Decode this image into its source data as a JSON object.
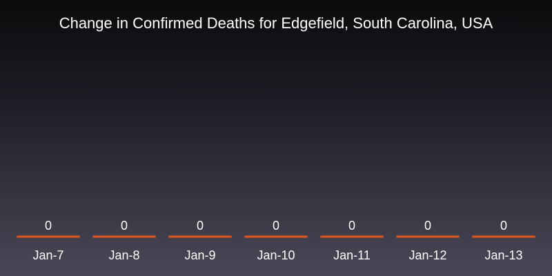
{
  "chart_data": {
    "type": "bar",
    "title": "Change in Confirmed Deaths for Edgefield, South Carolina, USA",
    "xlabel": "",
    "ylabel": "",
    "categories": [
      "Jan-7",
      "Jan-8",
      "Jan-9",
      "Jan-10",
      "Jan-11",
      "Jan-12",
      "Jan-13"
    ],
    "values": [
      0,
      0,
      0,
      0,
      0,
      0,
      0
    ],
    "data_labels": [
      "0",
      "0",
      "0",
      "0",
      "0",
      "0",
      "0"
    ],
    "ylim": [
      0,
      1
    ],
    "grid": false,
    "bar_color": "#e05a1c",
    "background_top": "#0b0b0d",
    "background_bottom": "#4a4758",
    "text_color": "#ffffff"
  }
}
